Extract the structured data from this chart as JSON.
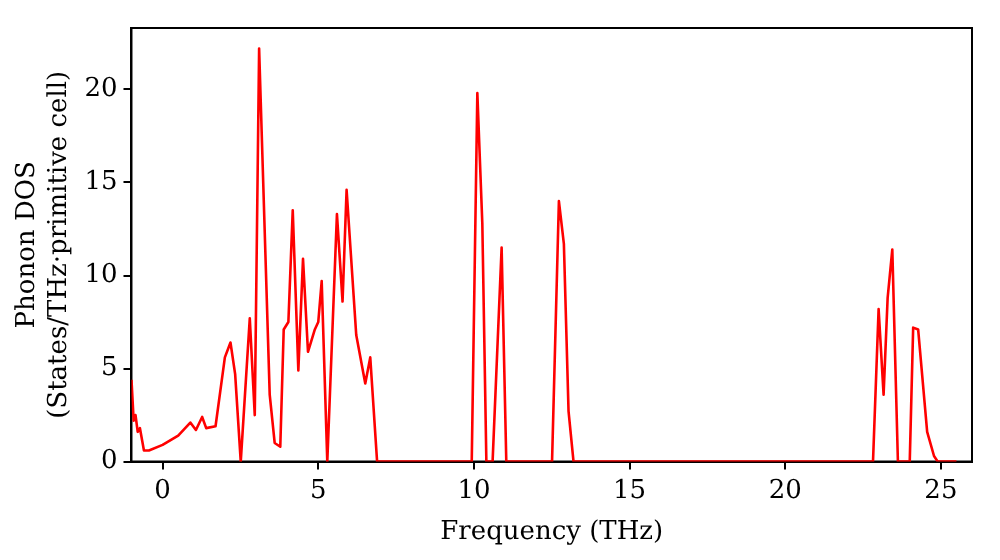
{
  "chart_data": {
    "type": "line",
    "xlabel": "Frequency (THz)",
    "ylabel": "Phonon DOS\n(States/THz·primitive cell)",
    "xlim": [
      -1,
      26
    ],
    "ylim": [
      0,
      23.3
    ],
    "xticks": [
      0,
      5,
      10,
      15,
      20,
      25
    ],
    "yticks": [
      0,
      5,
      10,
      15,
      20
    ],
    "grid": false,
    "legend": false,
    "marker": "none",
    "line_style": "solid",
    "series": [
      {
        "color": "#ff0000",
        "x": [
          -1.0,
          -0.93,
          -0.87,
          -0.8,
          -0.73,
          -0.6,
          -0.44,
          0.0,
          0.5,
          0.89,
          1.07,
          1.27,
          1.4,
          1.7,
          2.0,
          2.18,
          2.33,
          2.51,
          2.8,
          2.96,
          3.1,
          3.44,
          3.6,
          3.78,
          3.89,
          4.04,
          4.18,
          4.36,
          4.51,
          4.67,
          4.89,
          5.0,
          5.11,
          5.29,
          5.6,
          5.78,
          5.91,
          6.22,
          6.51,
          6.67,
          6.89,
          9.93,
          10.11,
          10.27,
          10.4,
          10.6,
          10.89,
          11.04,
          12.51,
          12.73,
          12.89,
          13.04,
          13.2,
          22.82,
          23.0,
          23.16,
          23.29,
          23.44,
          23.62,
          24.0,
          24.11,
          24.27,
          24.56,
          24.78,
          24.9,
          25.5
        ],
        "values": [
          4.4,
          2.2,
          2.5,
          1.6,
          1.8,
          0.6,
          0.6,
          0.9,
          1.4,
          2.1,
          1.7,
          2.4,
          1.8,
          1.9,
          5.6,
          6.4,
          4.7,
          0,
          7.7,
          2.5,
          22.2,
          3.6,
          1.0,
          0.8,
          7.1,
          7.5,
          13.5,
          4.9,
          10.9,
          5.9,
          7.1,
          7.5,
          9.7,
          0,
          13.3,
          8.6,
          14.6,
          6.8,
          4.2,
          5.6,
          0,
          0,
          19.8,
          12.8,
          0,
          0,
          11.5,
          0,
          0,
          14.0,
          11.7,
          2.7,
          0,
          0,
          8.2,
          3.6,
          8.8,
          11.4,
          0,
          0,
          7.2,
          7.1,
          1.6,
          0.3,
          0,
          0
        ]
      }
    ]
  }
}
